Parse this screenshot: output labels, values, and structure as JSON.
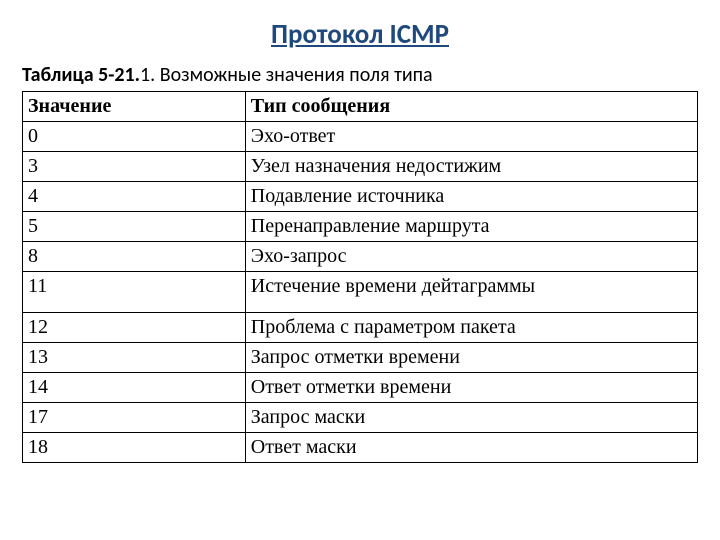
{
  "heading": "Протокол ICMP",
  "caption": {
    "prefix_bold": "Таблица 5-21.",
    "rest": "1. Возможные значения поля типа"
  },
  "table": {
    "columns": [
      "Значение",
      "Тип сообщения"
    ],
    "col_widths": [
      "33%",
      "67%"
    ],
    "rows": [
      {
        "value": "0",
        "msg": "Эхо-ответ",
        "tall": false
      },
      {
        "value": "3",
        "msg": "Узел назначения недостижим",
        "tall": false
      },
      {
        "value": "4",
        "msg": "Подавление источника",
        "tall": false
      },
      {
        "value": "5",
        "msg": "Перенаправление маршрута",
        "tall": false
      },
      {
        "value": "8",
        "msg": "Эхо-запрос",
        "tall": false
      },
      {
        "value": "11",
        "msg": "Истечение времени дейтаграммы",
        "tall": true
      },
      {
        "value": "12",
        "msg": "Проблема с параметром пакета",
        "tall": false
      },
      {
        "value": "13",
        "msg": "Запрос отметки времени",
        "tall": false
      },
      {
        "value": "14",
        "msg": "Ответ отметки времени",
        "tall": false
      },
      {
        "value": "17",
        "msg": "Запрос маски",
        "tall": false
      },
      {
        "value": "18",
        "msg": "Ответ маски",
        "tall": false
      }
    ]
  },
  "colors": {
    "heading": "#1f497d",
    "text": "#000000",
    "border": "#000000",
    "background": "#ffffff"
  },
  "font": {
    "heading_size_pt": 20,
    "body_size_pt": 15,
    "table_family": "Times New Roman"
  }
}
